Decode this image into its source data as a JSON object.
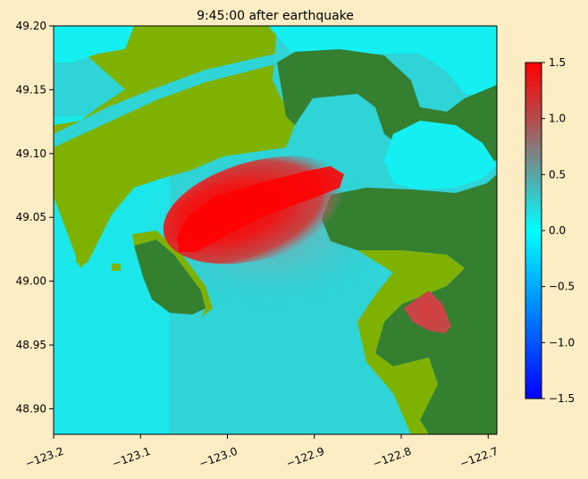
{
  "chart_data": {
    "type": "heatmap",
    "title": "9:45:00 after earthquake",
    "xlabel": "",
    "ylabel": "",
    "xlim": [
      -123.2,
      -122.69
    ],
    "ylim": [
      48.88,
      49.2
    ],
    "x_ticks": [
      -123.2,
      -123.1,
      -123.0,
      -122.9,
      -122.8,
      -122.7
    ],
    "x_tick_labels": [
      "−123.2",
      "−123.1",
      "−123.0",
      "−122.9",
      "−122.8",
      "−122.7"
    ],
    "y_ticks": [
      48.9,
      48.95,
      49.0,
      49.05,
      49.1,
      49.15,
      49.2
    ],
    "y_tick_labels": [
      "48.90",
      "48.95",
      "49.00",
      "49.05",
      "49.10",
      "49.15",
      "49.20"
    ],
    "colorbar": {
      "range": [
        -1.5,
        1.5
      ],
      "ticks": [
        -1.5,
        -1.0,
        -0.5,
        0.0,
        0.5,
        1.0,
        1.5
      ],
      "tick_labels": [
        "−1.5",
        "−1.0",
        "−0.5",
        "0.0",
        "0.5",
        "1.0",
        "1.5"
      ],
      "colors": [
        "#0000ff",
        "#00ffff",
        "#b44c4c",
        "#ff0000"
      ]
    },
    "colors": {
      "dry_land": "#357f30",
      "wet_land": "#7fb200",
      "open_water": "#00ffff",
      "background": "#fdedc4"
    },
    "grid": false
  }
}
